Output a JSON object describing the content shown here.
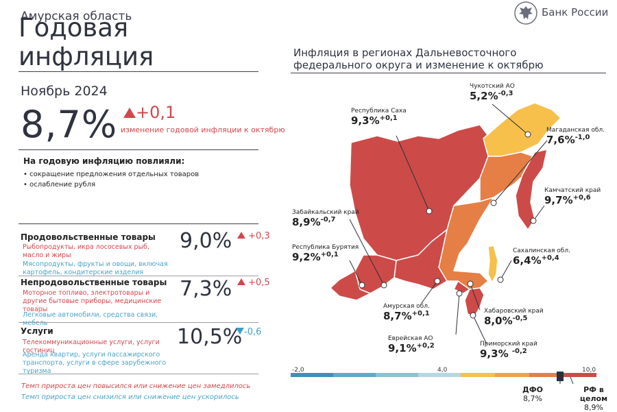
{
  "header": {
    "region": "Амурская область",
    "title": "Годовая инфляция",
    "bank": "Банк России",
    "period": "Ноябрь 2024",
    "inflation": "8,7%",
    "delta": "+0,1",
    "delta_caption": "изменение годовой инфляции к октябрю"
  },
  "factors": {
    "heading": "На годовую инфляцию повлияли:",
    "items": [
      "сокращение предложения отдельных товаров",
      "ослабление рубля"
    ]
  },
  "categories": [
    {
      "name": "Продовольственные товары",
      "value": "9,0%",
      "delta": "+0,3",
      "direction": "up",
      "red": "Рыбопродукты, икра лососевых рыб, масло и жиры",
      "blue": "Мясопродукты, фрукты и овощи, включая картофель, кондитерские изделия"
    },
    {
      "name": "Непродовольственные товары",
      "value": "7,3%",
      "delta": "+0,5",
      "direction": "up",
      "red": "Моторное топливо, электротовары и другие бытовые приборы, медицинские товары",
      "blue": "Легковые автомобили, средства связи, мебель"
    },
    {
      "name": "Услуги",
      "value": "10,5%",
      "delta": "-0,6",
      "direction": "down",
      "red": "Телекоммуникационные услуги, услуги гостиниц",
      "blue": "Аренда квартир, услуги пассажирского транспорта, услуги в сфере зарубежного туризма"
    }
  ],
  "legend": {
    "red": "Темп прироста цен повысился или снижение цен замедлилось",
    "blue": "Темп прироста цен снизился или снижение цен ускорилось"
  },
  "map": {
    "title": "Инфляция в регионах Дальневосточного федерального округа и изменение к октябрю",
    "regions": [
      {
        "name": "Чукотский АО",
        "value": "5,2%",
        "delta": "-0,3"
      },
      {
        "name": "Республика Саха",
        "value": "9,3%",
        "delta": "+0,1"
      },
      {
        "name": "Магаданская обл.",
        "value": "7,6%",
        "delta": "-1,0"
      },
      {
        "name": "Камчатский край",
        "value": "9,7%",
        "delta": "+0,6"
      },
      {
        "name": "Забайкальский край",
        "value": "8,9%",
        "delta": "-0,7"
      },
      {
        "name": "Республика Бурятия",
        "value": "9,2%",
        "delta": "+0,1"
      },
      {
        "name": "Сахалинская обл.",
        "value": "6,4%",
        "delta": "+0,4"
      },
      {
        "name": "Амурская обл.",
        "value": "8,7%",
        "delta": "+0,1"
      },
      {
        "name": "Хабаровский край",
        "value": "8,0%",
        "delta": "-0,5"
      },
      {
        "name": "Еврейская АО",
        "value": "9,1%",
        "delta": "+0,2"
      },
      {
        "name": "Приморский край",
        "value": "9,3%",
        "delta": "-0,2"
      }
    ],
    "scale": {
      "min": "-2,0",
      "mid": "4,0",
      "max": "10,0",
      "dfo_label": "ДФО",
      "dfo_value": "8,7%",
      "rf_label": "РФ в целом",
      "rf_value": "8,9%"
    }
  },
  "colors": {
    "red": "#d2474b",
    "blue": "#4aa3c8",
    "text": "#2f3340",
    "map_red": "#cc4b48",
    "map_orange": "#e57f45",
    "map_yellow": "#f6c04b"
  }
}
